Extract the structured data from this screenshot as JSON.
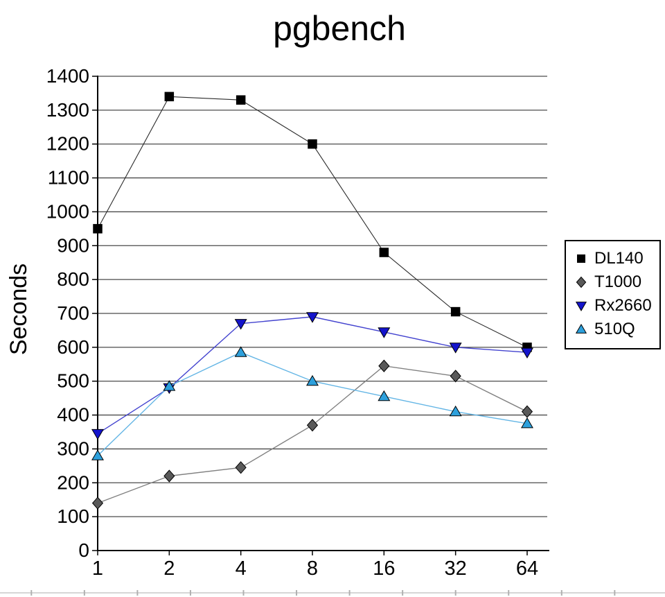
{
  "chart_data": {
    "type": "line",
    "title": "pgbench",
    "xlabel": "",
    "ylabel": "Seconds",
    "categories": [
      "1",
      "2",
      "4",
      "8",
      "16",
      "32",
      "64"
    ],
    "ylim": [
      0,
      1400
    ],
    "ytick_step": 100,
    "yticks": [
      0,
      100,
      200,
      300,
      400,
      500,
      600,
      700,
      800,
      900,
      1000,
      1100,
      1200,
      1300,
      1400
    ],
    "grid": true,
    "legend_position": "right",
    "axis_color": "#000000",
    "grid_color": "#4a4a4a",
    "series": [
      {
        "name": "DL140",
        "marker": "square",
        "marker_color": "#000000",
        "line_color": "#2b2b2b",
        "values": [
          950,
          1340,
          1330,
          1200,
          880,
          705,
          600
        ]
      },
      {
        "name": "T1000",
        "marker": "diamond",
        "marker_color": "#595959",
        "line_color": "#808080",
        "values": [
          140,
          220,
          245,
          370,
          545,
          515,
          410
        ]
      },
      {
        "name": "Rx2660",
        "marker": "triangle-down",
        "marker_color": "#1414cc",
        "line_color": "#4343cf",
        "values": [
          345,
          480,
          670,
          690,
          645,
          600,
          585
        ]
      },
      {
        "name": "510Q",
        "marker": "triangle-up",
        "marker_color": "#2da0dc",
        "line_color": "#63b5e5",
        "values": [
          280,
          485,
          585,
          500,
          455,
          410,
          375
        ]
      }
    ]
  }
}
